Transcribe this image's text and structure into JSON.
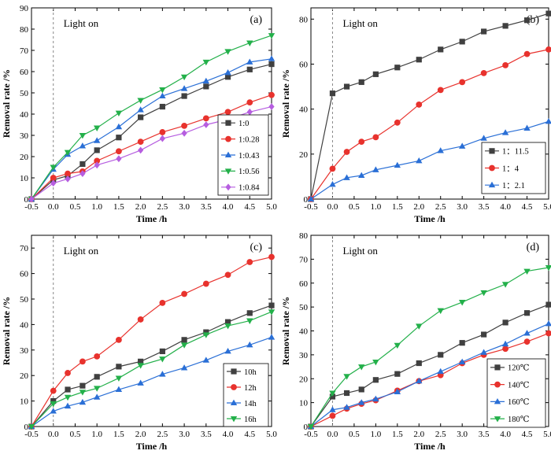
{
  "annotation": "Light on",
  "chart_data": [
    {
      "type": "line",
      "panel": "(a)",
      "xlabel": "Time /h",
      "ylabel": "Removal rate /%",
      "xlim": [
        -0.5,
        5.0
      ],
      "ylim": [
        0,
        90
      ],
      "x_ticks": [
        -0.5,
        0.0,
        0.5,
        1.0,
        1.5,
        2.0,
        2.5,
        3.0,
        3.5,
        4.0,
        4.5,
        5.0
      ],
      "y_ticks": [
        0,
        10,
        20,
        30,
        40,
        50,
        60,
        70,
        80,
        90
      ],
      "light_on_x": 0,
      "legend_position": "lower-right",
      "x": [
        -0.5,
        0.0,
        0.33,
        0.67,
        1.0,
        1.5,
        2.0,
        2.5,
        3.0,
        3.5,
        4.0,
        4.5,
        5.0
      ],
      "series": [
        {
          "name": "1:0",
          "color": "#404040",
          "marker": "square",
          "values": [
            0,
            9,
            11,
            16.5,
            23,
            29,
            38.5,
            43.5,
            48.5,
            53,
            57.5,
            61,
            63.5
          ]
        },
        {
          "name": "1:0.28",
          "color": "#e8322d",
          "marker": "circle",
          "values": [
            0,
            10,
            12,
            13,
            18,
            22.5,
            27,
            31.5,
            34.5,
            38,
            41,
            45.5,
            49
          ]
        },
        {
          "name": "1:0.43",
          "color": "#2a6fd6",
          "marker": "triangle-up",
          "values": [
            0,
            14,
            21,
            25,
            27.5,
            34,
            42,
            48.5,
            52,
            55.5,
            59.5,
            64.5,
            66
          ]
        },
        {
          "name": "1:0.56",
          "color": "#23b04a",
          "marker": "triangle-down",
          "values": [
            0,
            15,
            22,
            30,
            33.5,
            40.5,
            46.5,
            51.5,
            57.5,
            64.5,
            69.5,
            73.5,
            77
          ]
        },
        {
          "name": "1:0.84",
          "color": "#b65ee0",
          "marker": "diamond",
          "values": [
            0,
            7.5,
            9.5,
            12,
            16,
            19,
            23,
            28.5,
            31,
            35,
            37.5,
            41,
            43.5
          ]
        }
      ]
    },
    {
      "type": "line",
      "panel": "(b)",
      "xlabel": "Time /h",
      "ylabel": "Removal rate /%",
      "xlim": [
        -0.5,
        5.0
      ],
      "ylim": [
        0,
        85
      ],
      "x_ticks": [
        -0.5,
        0.0,
        0.5,
        1.0,
        1.5,
        2.0,
        2.5,
        3.0,
        3.5,
        4.0,
        4.5,
        5.0
      ],
      "y_ticks": [
        0,
        20,
        40,
        60,
        80
      ],
      "light_on_x": 0,
      "legend_position": "lower-right",
      "x": [
        -0.5,
        0.0,
        0.33,
        0.67,
        1.0,
        1.5,
        2.0,
        2.5,
        3.0,
        3.5,
        4.0,
        4.5,
        5.0
      ],
      "series": [
        {
          "name": "1：11.5",
          "color": "#404040",
          "marker": "square",
          "values": [
            0,
            47,
            50,
            52,
            55.5,
            58.5,
            62,
            66.5,
            70,
            74.5,
            77,
            79.5,
            82.5
          ]
        },
        {
          "name": "1：4",
          "color": "#e8322d",
          "marker": "circle",
          "values": [
            0,
            13.5,
            21,
            25.5,
            27.5,
            34,
            42,
            48.5,
            52,
            56,
            59.5,
            64.5,
            66.5
          ]
        },
        {
          "name": "1：2.1",
          "color": "#2a6fd6",
          "marker": "triangle-up",
          "values": [
            0,
            6.5,
            9.5,
            10.5,
            13,
            15,
            17,
            21.5,
            23.5,
            27,
            29.5,
            31.5,
            34.5
          ]
        }
      ]
    },
    {
      "type": "line",
      "panel": "(c)",
      "xlabel": "Time /h",
      "ylabel": "Removal rate /%",
      "xlim": [
        -0.5,
        5.0
      ],
      "ylim": [
        0,
        75
      ],
      "x_ticks": [
        -0.5,
        0.0,
        0.5,
        1.0,
        1.5,
        2.0,
        2.5,
        3.0,
        3.5,
        4.0,
        4.5,
        5.0
      ],
      "y_ticks": [
        0,
        10,
        20,
        30,
        40,
        50,
        60,
        70
      ],
      "light_on_x": 0,
      "legend_position": "lower-right",
      "x": [
        -0.5,
        0.0,
        0.33,
        0.67,
        1.0,
        1.5,
        2.0,
        2.5,
        3.0,
        3.5,
        4.0,
        4.5,
        5.0
      ],
      "series": [
        {
          "name": "10h",
          "color": "#404040",
          "marker": "square",
          "values": [
            0,
            10,
            14.5,
            16,
            19.5,
            23.5,
            25.5,
            29.5,
            34,
            37,
            41,
            44.5,
            47.5
          ]
        },
        {
          "name": "12h",
          "color": "#e8322d",
          "marker": "circle",
          "values": [
            0,
            14,
            21,
            25.5,
            27.5,
            34,
            42,
            48.5,
            52,
            56,
            59.5,
            64.5,
            66.5
          ]
        },
        {
          "name": "14h",
          "color": "#2a6fd6",
          "marker": "triangle-up",
          "values": [
            0,
            6,
            8,
            9.5,
            11.5,
            14.5,
            17,
            20.5,
            23,
            26,
            29.5,
            32,
            35
          ]
        },
        {
          "name": "16h",
          "color": "#23b04a",
          "marker": "triangle-down",
          "values": [
            0,
            9,
            11.5,
            13.5,
            15,
            19,
            24,
            26.5,
            32,
            36,
            39.5,
            41.5,
            45
          ]
        }
      ]
    },
    {
      "type": "line",
      "panel": "(d)",
      "xlabel": "Time /h",
      "ylabel": "Removal rate /%",
      "xlim": [
        -0.5,
        5.0
      ],
      "ylim": [
        0,
        80
      ],
      "x_ticks": [
        -0.5,
        0.0,
        0.5,
        1.0,
        1.5,
        2.0,
        2.5,
        3.0,
        3.5,
        4.0,
        4.5,
        5.0
      ],
      "y_ticks": [
        0,
        10,
        20,
        30,
        40,
        50,
        60,
        70,
        80
      ],
      "light_on_x": 0,
      "legend_position": "lower-right",
      "x": [
        -0.5,
        0.0,
        0.33,
        0.67,
        1.0,
        1.5,
        2.0,
        2.5,
        3.0,
        3.5,
        4.0,
        4.5,
        5.0
      ],
      "series": [
        {
          "name": "120℃",
          "color": "#404040",
          "marker": "square",
          "values": [
            0,
            12.5,
            14,
            15.5,
            19.5,
            22,
            26.5,
            30,
            35,
            38.5,
            43.5,
            47.5,
            51
          ]
        },
        {
          "name": "140℃",
          "color": "#e8322d",
          "marker": "circle",
          "values": [
            0,
            4.5,
            7.5,
            9.5,
            11,
            15,
            19,
            21.5,
            26.5,
            30,
            32.5,
            35.5,
            39
          ]
        },
        {
          "name": "160℃",
          "color": "#2a6fd6",
          "marker": "triangle-up",
          "values": [
            0,
            7,
            8,
            10,
            11.5,
            14.5,
            19,
            23,
            27,
            31,
            34.5,
            39,
            43
          ]
        },
        {
          "name": "180℃",
          "color": "#23b04a",
          "marker": "triangle-down",
          "values": [
            0,
            14,
            21,
            25,
            27,
            34,
            42,
            48.5,
            52,
            56,
            59.5,
            65,
            66.5
          ]
        }
      ]
    }
  ]
}
